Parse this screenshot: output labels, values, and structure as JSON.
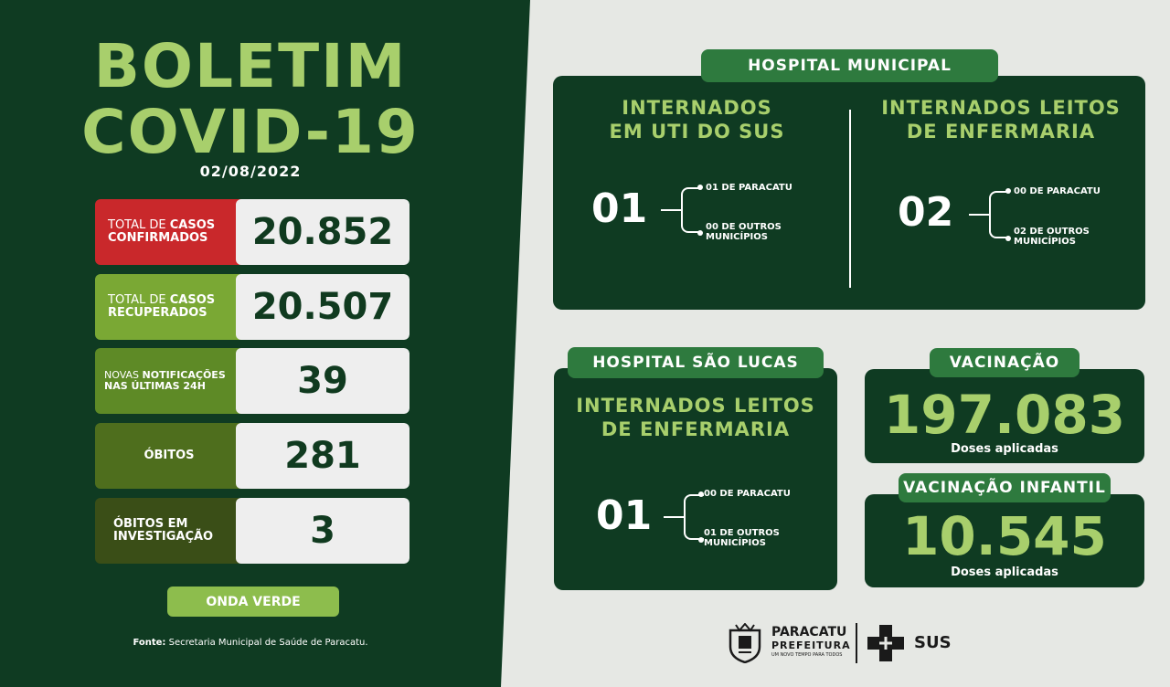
{
  "header": {
    "title_line1": "BOLETIM",
    "title_line2": "COVID-19",
    "date": "02/08/2022"
  },
  "stats": [
    {
      "label_plain": "TOTAL DE",
      "label_bold": "CASOS",
      "label_line2": "CONFIRMADOS",
      "value": "20.852"
    },
    {
      "label_plain": "TOTAL DE",
      "label_bold": "CASOS",
      "label_line2": "RECUPERADOS",
      "value": "20.507"
    },
    {
      "label_plain": "NOVAS",
      "label_bold": "NOTIFICAÇÕES",
      "label_line2": "NAS ÚLTIMAS 24H",
      "value": "39"
    },
    {
      "label": "ÓBITOS",
      "value": "281"
    },
    {
      "label_line1": "ÓBITOS EM",
      "label_line2": "INVESTIGAÇÃO",
      "value": "3"
    }
  ],
  "wave": "ONDA VERDE",
  "source": {
    "label": "Fonte:",
    "text": "Secretaria Municipal de Saúde de Paracatu."
  },
  "hospital_municipal": {
    "tab": "HOSPITAL MUNICIPAL",
    "uti": {
      "title_line1": "INTERNADOS",
      "title_line2": "EM UTI DO SUS",
      "total": "01",
      "b1": "01 DE PARACATU",
      "b2_line1": "00 DE OUTROS",
      "b2_line2": "MUNICÍPIOS"
    },
    "enf": {
      "title_line1": "INTERNADOS LEITOS",
      "title_line2": "DE ENFERMARIA",
      "total": "02",
      "b1": "00 DE PARACATU",
      "b2_line1": "02 DE OUTROS",
      "b2_line2": "MUNICÍPIOS"
    }
  },
  "hospital_sao_lucas": {
    "tab": "HOSPITAL SÃO LUCAS",
    "title_line1": "INTERNADOS LEITOS",
    "title_line2": "DE ENFERMARIA",
    "total": "01",
    "b1": "00 DE PARACATU",
    "b2_line1": "01 DE OUTROS",
    "b2_line2": "MUNICÍPIOS"
  },
  "vacinacao": {
    "tab": "VACINAÇÃO",
    "value": "197.083",
    "label": "Doses aplicadas"
  },
  "vacinacao_infantil": {
    "tab": "VACINAÇÃO INFANTIL",
    "value": "10.545",
    "label": "Doses aplicadas"
  },
  "logos": {
    "line1": "PARACATU",
    "line2": "PREFEITURA",
    "line3": "UM NOVO TEMPO PARA TODOS",
    "sus": "SUS"
  },
  "colors": {
    "dark_green": "#0f3b22",
    "accent_green": "#a8cf6c",
    "tab_green": "#2e7a3e",
    "red": "#c9282b"
  }
}
